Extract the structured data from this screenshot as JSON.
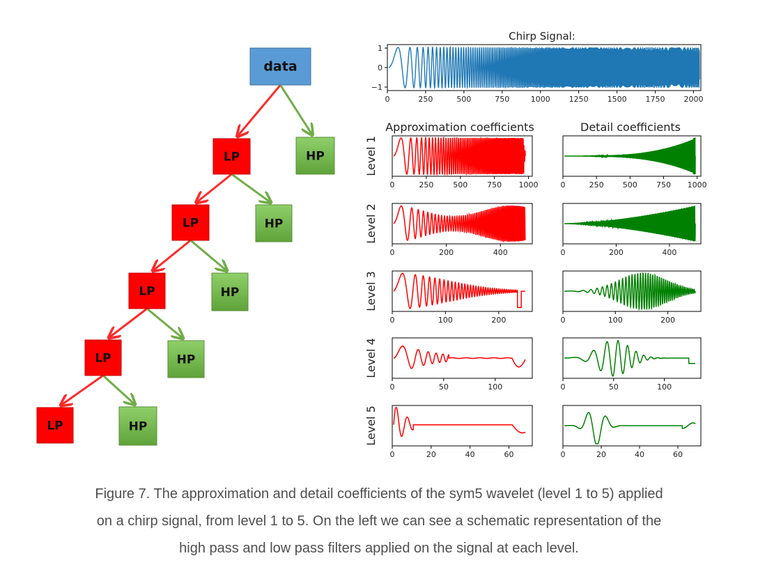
{
  "tree": {
    "root_label": "data",
    "low_label": "LP",
    "high_label": "HP",
    "colors": {
      "root": "#5b9bd5",
      "low": "#ff0000",
      "high": "#70ad47",
      "low_edge": "#ff2a2a",
      "high_edge": "#70ad47"
    }
  },
  "chart_data": [
    {
      "type": "line",
      "title": "Chirp Signal:",
      "x_ticks": [
        0,
        250,
        500,
        750,
        1000,
        1250,
        1500,
        1750,
        2000
      ],
      "y_ticks": [
        "−1",
        "0",
        "1"
      ],
      "xlim": [
        0,
        2048
      ],
      "ylim": [
        -1,
        1
      ],
      "color": "#1f77b4",
      "series": [
        {
          "x_range": [
            0,
            2048
          ],
          "description_values": "chirp: frequency increasing with x, amplitude 1"
        }
      ]
    },
    {
      "type": "line",
      "column_titles": [
        "Approximation coefficients",
        "Detail coefficients"
      ],
      "row_labels": [
        "Level 1",
        "Level 2",
        "Level 3",
        "Level 4",
        "Level 5"
      ],
      "approx_color": "#ff0000",
      "detail_color": "#008000",
      "levels": [
        {
          "level": 1,
          "xlim": [
            0,
            1028
          ],
          "x_ticks": [
            0,
            250,
            500,
            750,
            1000
          ]
        },
        {
          "level": 2,
          "xlim": [
            0,
            518
          ],
          "x_ticks": [
            0,
            200,
            400
          ]
        },
        {
          "level": 3,
          "xlim": [
            0,
            263
          ],
          "x_ticks": [
            0,
            100,
            200
          ]
        },
        {
          "level": 4,
          "xlim": [
            0,
            136
          ],
          "x_ticks": [
            0,
            50,
            100
          ]
        },
        {
          "level": 5,
          "xlim": [
            0,
            72
          ],
          "x_ticks": [
            0,
            20,
            40,
            60
          ]
        }
      ]
    }
  ],
  "caption": {
    "line1": "Figure 7. The approximation and detail coefficients of the sym5 wavelet (level 1 to 5) applied",
    "line2": "on a chirp signal, from level 1 to 5. On the left we can see a schematic representation of the",
    "line3": "high pass and low pass filters applied on the signal at each level."
  }
}
